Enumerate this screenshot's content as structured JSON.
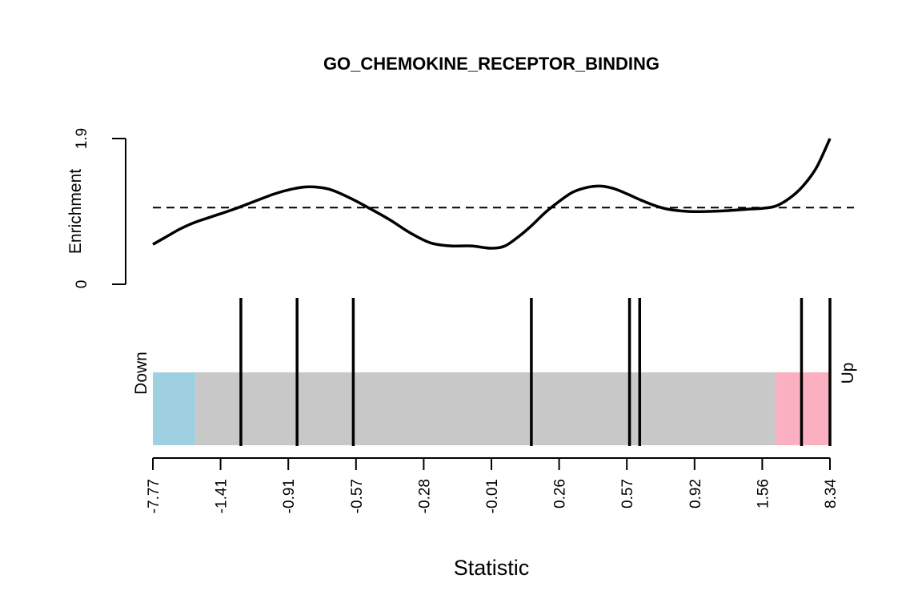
{
  "chart_data": {
    "type": "barcode",
    "title": "GO_CHEMOKINE_RECEPTOR_BINDING",
    "xlabel": "Statistic",
    "enrichment_axis": {
      "label": "Enrichment",
      "ylim": [
        0,
        1.9
      ],
      "tick_labels": [
        "0",
        "1.9"
      ],
      "reference_line": 1.0,
      "reference_style": "dashed"
    },
    "barcode_labels": {
      "down": "Down",
      "up": "Up"
    },
    "x_tick_labels": [
      "-7.77",
      "-1.41",
      "-0.91",
      "-0.57",
      "-0.28",
      "-0.01",
      "0.26",
      "0.57",
      "0.92",
      "1.56",
      "8.34"
    ],
    "x_rank_range": [
      0,
      1
    ],
    "regions": [
      {
        "name": "Down",
        "from": 0.0,
        "to": 0.063,
        "color": "#9fd0e2"
      },
      {
        "name": "middle",
        "from": 0.063,
        "to": 0.92,
        "color": "#c8c8c8"
      },
      {
        "name": "Up",
        "from": 0.92,
        "to": 1.0,
        "color": "#fab0c0"
      }
    ],
    "gene_positions": [
      0.13,
      0.213,
      0.296,
      0.559,
      0.704,
      0.719,
      0.958,
      1.0
    ],
    "enrichment_curve": {
      "x": [
        0.0,
        0.02,
        0.04,
        0.063,
        0.09,
        0.12,
        0.15,
        0.18,
        0.205,
        0.23,
        0.26,
        0.29,
        0.32,
        0.35,
        0.38,
        0.41,
        0.44,
        0.47,
        0.5,
        0.52,
        0.54,
        0.56,
        0.58,
        0.6,
        0.62,
        0.64,
        0.66,
        0.68,
        0.7,
        0.72,
        0.74,
        0.76,
        0.79,
        0.82,
        0.85,
        0.88,
        0.9,
        0.92,
        0.94,
        0.96,
        0.98,
        1.0
      ],
      "y": [
        0.52,
        0.62,
        0.72,
        0.81,
        0.89,
        0.98,
        1.08,
        1.18,
        1.24,
        1.27,
        1.24,
        1.13,
        0.99,
        0.84,
        0.67,
        0.54,
        0.5,
        0.5,
        0.47,
        0.5,
        0.62,
        0.77,
        0.94,
        1.08,
        1.2,
        1.26,
        1.28,
        1.25,
        1.18,
        1.1,
        1.03,
        0.98,
        0.95,
        0.95,
        0.96,
        0.98,
        0.99,
        1.02,
        1.12,
        1.28,
        1.52,
        1.9
      ]
    }
  }
}
